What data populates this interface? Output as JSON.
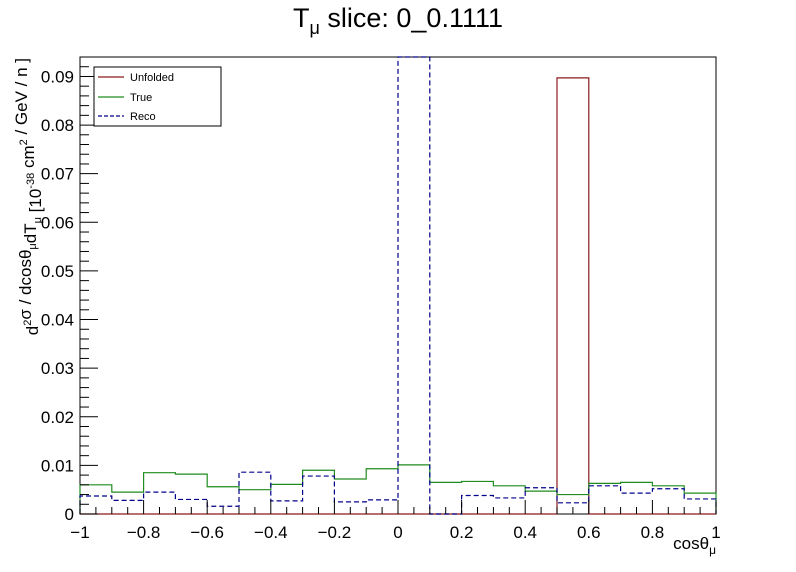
{
  "chart_data": {
    "type": "histogram",
    "title_main": "T",
    "title_sub": "μ",
    "title_rest": " slice: 0_0.1111",
    "xlabel_main": "cosθ",
    "xlabel_sub": "μ",
    "ylabel_parts": [
      {
        "t": "d",
        "s": "normal"
      },
      {
        "t": "2",
        "s": "sup"
      },
      {
        "t": "σ / dcosθ",
        "s": "normal"
      },
      {
        "t": "μ",
        "s": "sub"
      },
      {
        "t": "dT",
        "s": "normal"
      },
      {
        "t": "μ",
        "s": "sub"
      },
      {
        "t": " [10",
        "s": "normal"
      },
      {
        "t": "-38",
        "s": "sup"
      },
      {
        "t": " cm",
        "s": "normal"
      },
      {
        "t": "2",
        "s": "sup"
      },
      {
        "t": " / GeV / n ]",
        "s": "normal"
      }
    ],
    "xlim": [
      -1,
      1
    ],
    "ylim": [
      0,
      0.094
    ],
    "bin_edges": [
      -1,
      -0.9,
      -0.8,
      -0.7,
      -0.6,
      -0.5,
      -0.4,
      -0.3,
      -0.2,
      -0.1,
      0,
      0.1,
      0.2,
      0.3,
      0.4,
      0.5,
      0.6,
      0.7,
      0.8,
      0.9,
      1
    ],
    "x_ticks": [
      -1,
      -0.8,
      -0.6,
      -0.4,
      -0.2,
      0,
      0.2,
      0.4,
      0.6,
      0.8,
      1
    ],
    "x_tick_labels": [
      "−1",
      "−0.8",
      "−0.6",
      "−0.4",
      "−0.2",
      "0",
      "0.2",
      "0.4",
      "0.6",
      "0.8",
      "1"
    ],
    "y_ticks": [
      0,
      0.01,
      0.02,
      0.03,
      0.04,
      0.05,
      0.06,
      0.07,
      0.08,
      0.09
    ],
    "y_tick_labels": [
      "0",
      "0.01",
      "0.02",
      "0.03",
      "0.04",
      "0.05",
      "0.06",
      "0.07",
      "0.08",
      "0.09"
    ],
    "legend_position": "top-left",
    "series": [
      {
        "name": "Unfolded",
        "color": "#8b1a1a",
        "style": "solid",
        "values": [
          0,
          0,
          0,
          0,
          0,
          0,
          0,
          0,
          0,
          0,
          0,
          0,
          0,
          0,
          0,
          0.0897,
          0,
          0,
          0,
          0
        ]
      },
      {
        "name": "True",
        "color": "#1e8c1e",
        "style": "solid",
        "values": [
          0.006,
          0.0045,
          0.0085,
          0.0082,
          0.0056,
          0.005,
          0.0061,
          0.009,
          0.0072,
          0.0093,
          0.0101,
          0.0065,
          0.0067,
          0.0058,
          0.0047,
          0.004,
          0.0063,
          0.0065,
          0.0058,
          0.0043
        ]
      },
      {
        "name": "Reco",
        "color": "#00008b",
        "style": "dashed",
        "values": [
          0.0037,
          0.0028,
          0.0045,
          0.003,
          0.0016,
          0.0086,
          0.0027,
          0.0078,
          0.0025,
          0.0029,
          0.0945,
          0,
          0.0038,
          0.0033,
          0.0054,
          0.0023,
          0.0058,
          0.0043,
          0.0052,
          0.0031
        ]
      }
    ]
  }
}
